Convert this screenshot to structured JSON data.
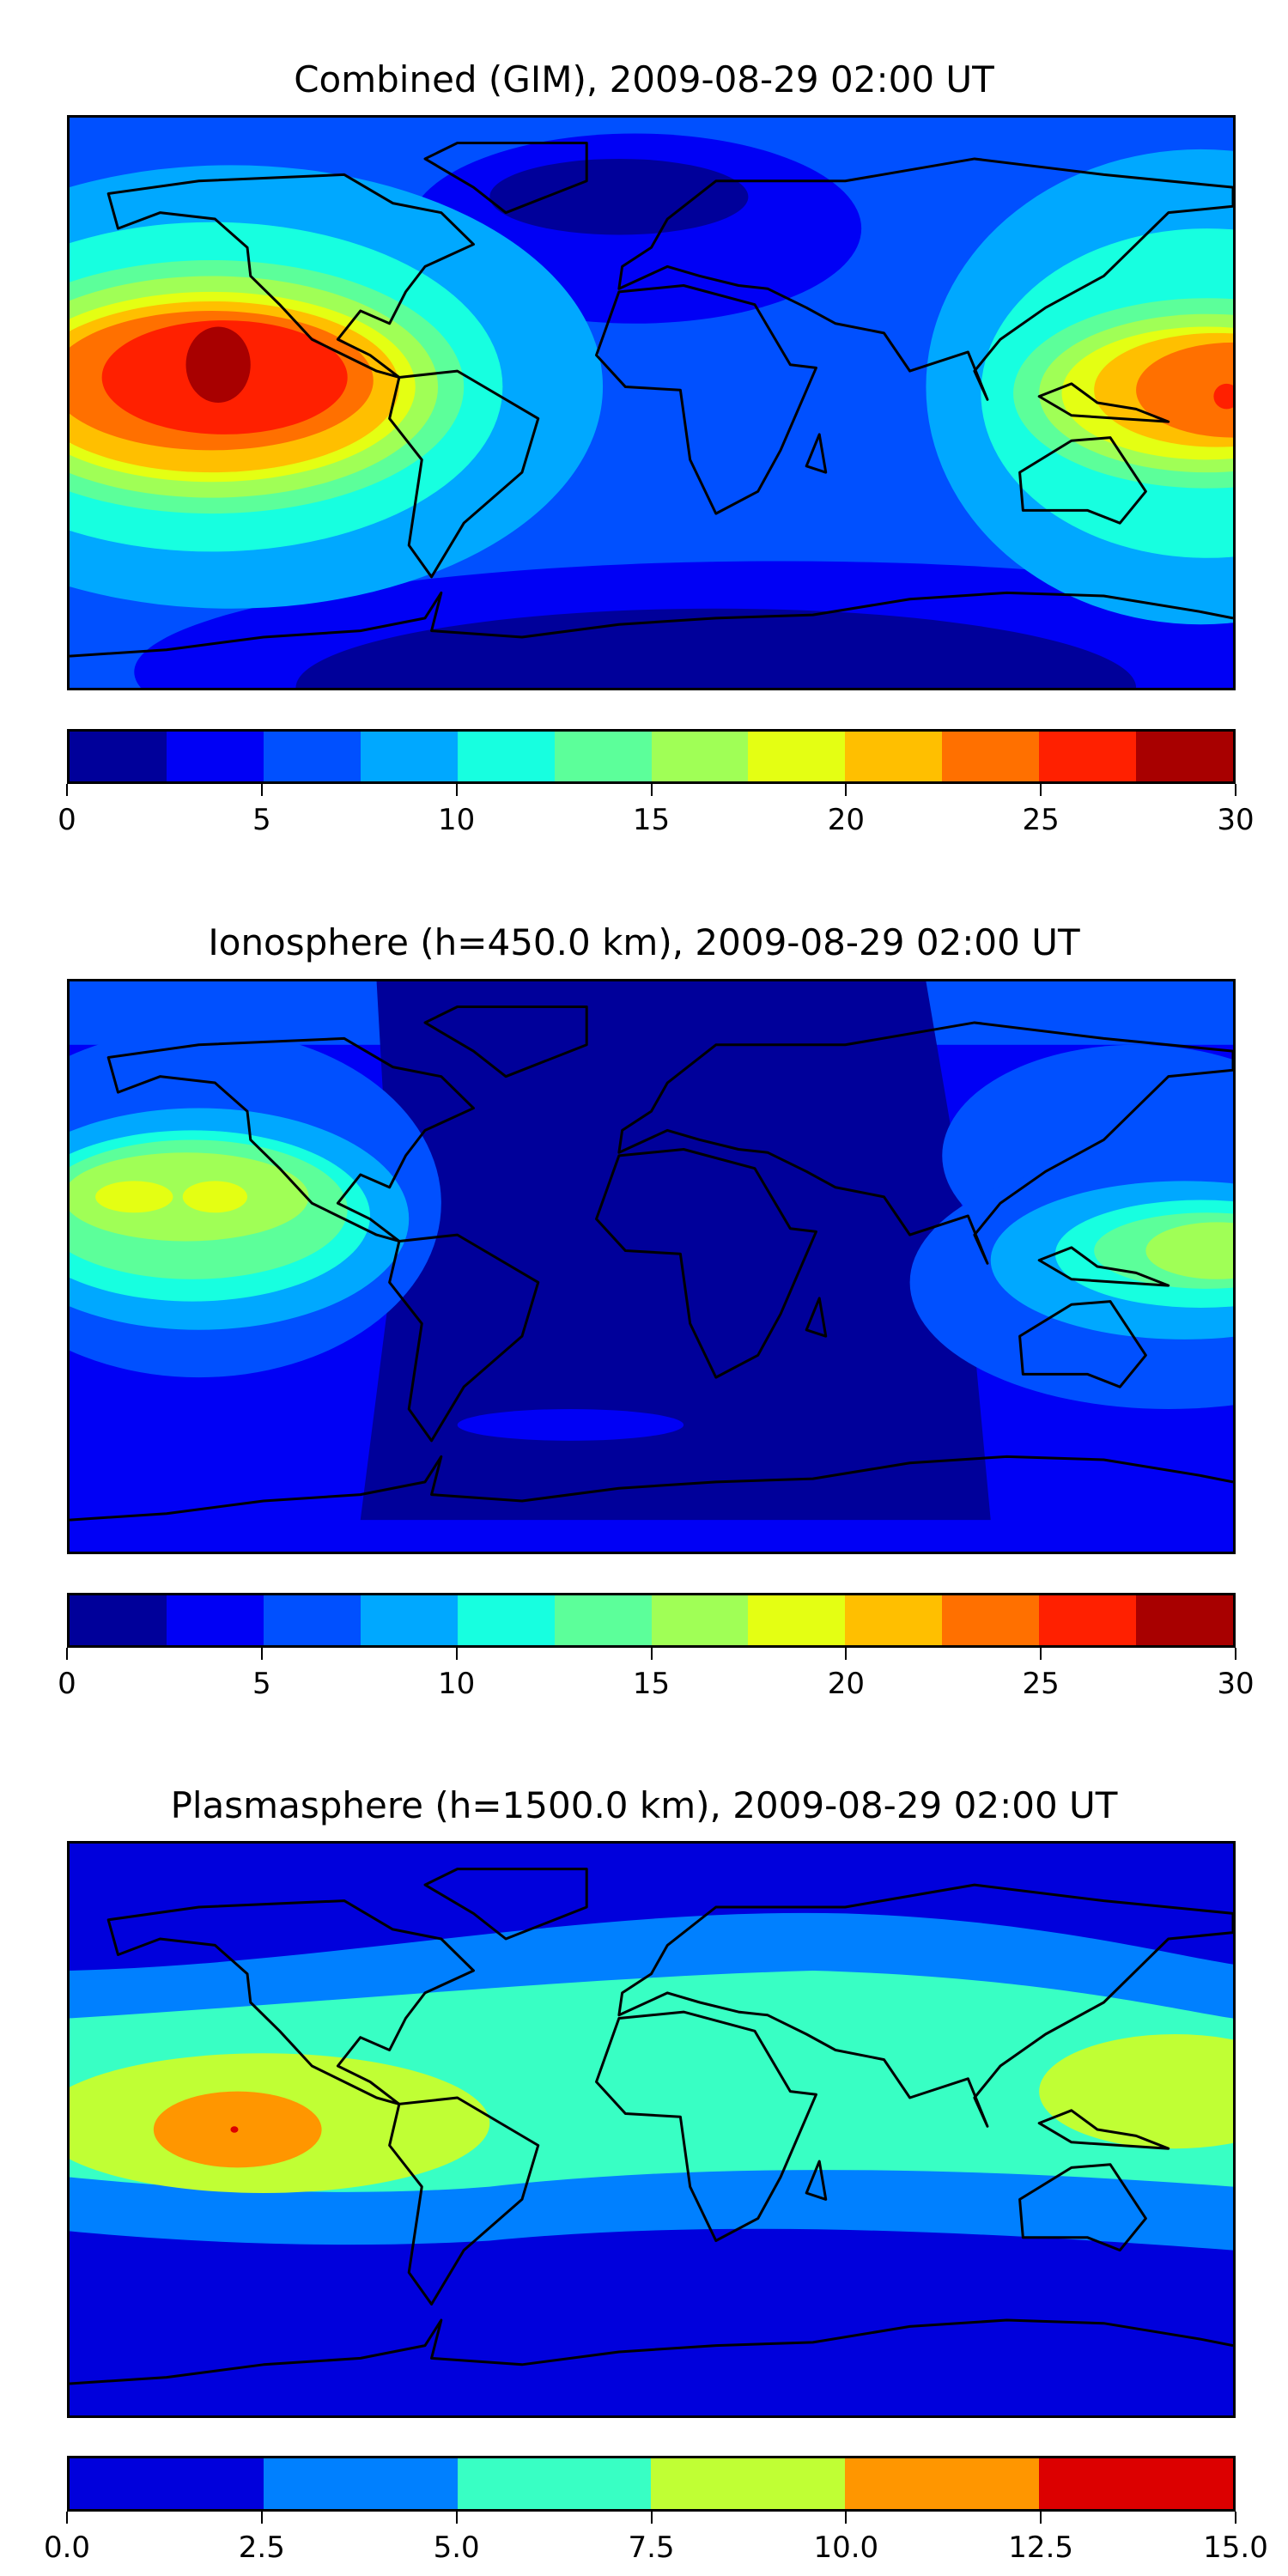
{
  "panels": [
    {
      "title": "Combined (GIM), 2009-08-29 02:00 UT",
      "colors": [
        "#00009a",
        "#0000f5",
        "#0050ff",
        "#00a8ff",
        "#17ffe0",
        "#5cff9a",
        "#a0ff56",
        "#e4ff13",
        "#ffbf00",
        "#ff7000",
        "#ff2000",
        "#a80000"
      ],
      "ticks": [
        "0",
        "5",
        "10",
        "15",
        "20",
        "25",
        "30"
      ],
      "range": [
        0,
        30
      ]
    },
    {
      "title": "Ionosphere  (h=450.0 km), 2009-08-29 02:00 UT",
      "colors": [
        "#00009a",
        "#0000f5",
        "#0050ff",
        "#00a8ff",
        "#17ffe0",
        "#5cff9a",
        "#a0ff56",
        "#e4ff13",
        "#ffbf00",
        "#ff7000",
        "#ff2000",
        "#a80000"
      ],
      "ticks": [
        "0",
        "5",
        "10",
        "15",
        "20",
        "25",
        "30"
      ],
      "range": [
        0,
        30
      ]
    },
    {
      "title": "Plasmasphere (h=1500.0 km), 2009-08-29 02:00 UT",
      "colors": [
        "#0000dc",
        "#0080ff",
        "#38ffc4",
        "#c0ff34",
        "#ff9600",
        "#dc0000"
      ],
      "ticks": [
        "0.0",
        "2.5",
        "5.0",
        "7.5",
        "10.0",
        "12.5",
        "15.0"
      ],
      "range": [
        0,
        15
      ]
    }
  ]
}
